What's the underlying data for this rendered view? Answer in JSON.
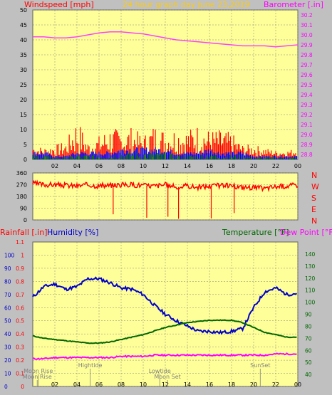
{
  "header": {
    "windspeed_label": "Windspeed [mph]",
    "title": "24 hour graph day  June 23,2019",
    "barometer_label": "Barometer [.in]"
  },
  "colors": {
    "panel": "#ffff99",
    "background": "#c0c0c0",
    "grid": "#808080",
    "wind": "#ff0000",
    "gust_low": "#0000ff",
    "gust_green": "#008000",
    "barometer": "#ff40ff",
    "humidity": "#0000cc",
    "temperature": "#006600",
    "dewpoint": "#ff00ff",
    "title_orange": "#ffcc00"
  },
  "chart_data": [
    {
      "type": "line",
      "name": "wind-barometer",
      "x_ticks": [
        "02",
        "04",
        "06",
        "08",
        "10",
        "12",
        "14",
        "16",
        "18",
        "20",
        "22",
        "00"
      ],
      "y_left_ticks": [
        0,
        5,
        10,
        15,
        20,
        25,
        30,
        35,
        40,
        45,
        50
      ],
      "y_left_lim": [
        0,
        50
      ],
      "y_right_ticks": [
        28.8,
        28.9,
        29.0,
        29.1,
        29.2,
        29.3,
        29.4,
        29.5,
        29.6,
        29.7,
        29.8,
        29.9,
        30.0,
        30.1,
        30.2
      ],
      "y_right_lim": [
        28.75,
        30.25
      ],
      "barometer": {
        "x": [
          0,
          1,
          2,
          3,
          4,
          5,
          6,
          7,
          8,
          9,
          10,
          11,
          12,
          13,
          14,
          15,
          16,
          17,
          18,
          19,
          20,
          21,
          22,
          23,
          24
        ],
        "y": [
          29.98,
          29.98,
          29.97,
          29.97,
          29.98,
          30.0,
          30.02,
          30.03,
          30.03,
          30.02,
          30.01,
          29.99,
          29.97,
          29.95,
          29.94,
          29.93,
          29.92,
          29.91,
          29.9,
          29.89,
          29.89,
          29.89,
          29.88,
          29.89,
          29.9
        ]
      },
      "wind_avg_mph": {
        "x": [
          0,
          1,
          2,
          3,
          4,
          5,
          6,
          7,
          8,
          9,
          10,
          11,
          12,
          13,
          14,
          15,
          16,
          17,
          18,
          19,
          20,
          21,
          22,
          23,
          24
        ],
        "y": [
          2,
          2,
          1,
          1,
          2,
          2,
          2,
          2,
          3,
          3,
          3,
          3,
          3,
          2,
          2,
          2,
          3,
          2,
          2,
          2,
          1,
          1,
          1,
          1,
          1
        ]
      },
      "wind_gust_peak_mph": {
        "x": [
          0,
          1,
          2,
          3,
          4,
          5,
          6,
          7,
          8,
          9,
          10,
          11,
          12,
          13,
          14,
          15,
          16,
          17,
          18,
          19,
          20,
          21,
          22,
          23,
          24
        ],
        "y": [
          5,
          4,
          5,
          6,
          14,
          6,
          8,
          11,
          10,
          11,
          8,
          12,
          10,
          11,
          10,
          12,
          10,
          10,
          9,
          5,
          5,
          4,
          3,
          3,
          4
        ]
      }
    },
    {
      "type": "line",
      "name": "wind-direction",
      "y_left_ticks": [
        0,
        90,
        180,
        270,
        360
      ],
      "y_left_lim": [
        0,
        360
      ],
      "compass": [
        "N",
        "W",
        "S",
        "E",
        "N"
      ],
      "direction_deg": {
        "x": [
          0,
          1,
          2,
          3,
          4,
          5,
          6,
          7,
          8,
          9,
          10,
          11,
          12,
          13,
          14,
          15,
          16,
          17,
          18,
          19,
          20,
          21,
          22,
          23,
          24
        ],
        "y": [
          280,
          270,
          270,
          265,
          260,
          270,
          260,
          265,
          270,
          270,
          265,
          260,
          270,
          250,
          260,
          250,
          260,
          265,
          260,
          250,
          250,
          240,
          255,
          260,
          270
        ]
      }
    },
    {
      "type": "line",
      "name": "temperature-humidity",
      "header": {
        "rain_label": "Rainfall [.in]",
        "humidity_label": "Humidity [%]",
        "temp_label": "Temperature [°F]",
        "dew_label": "Dew Point [°F]"
      },
      "x_ticks": [
        "02",
        "04",
        "06",
        "08",
        "10",
        "12",
        "14",
        "16",
        "18",
        "20",
        "22",
        "00"
      ],
      "humidity_ticks": [
        0,
        10,
        20,
        30,
        40,
        50,
        60,
        70,
        80,
        90,
        100
      ],
      "rain_ticks": [
        "0",
        "0.1",
        "0.2",
        "0.3",
        "0.4",
        "0.5",
        "0.6",
        "0.7",
        "0.8",
        "0.9",
        "1",
        "1.1"
      ],
      "temp_ticks": [
        40,
        50,
        60,
        70,
        80,
        90,
        100,
        110,
        120,
        130,
        140
      ],
      "temp_lim": [
        30,
        150
      ],
      "humidity_lim": [
        0,
        110
      ],
      "humidity": {
        "x": [
          0,
          1,
          2,
          3,
          4,
          5,
          6,
          7,
          8,
          9,
          10,
          11,
          12,
          13,
          14,
          15,
          16,
          17,
          18,
          19,
          20,
          21,
          22,
          23,
          24
        ],
        "y": [
          68,
          76,
          78,
          74,
          76,
          82,
          82,
          79,
          75,
          74,
          70,
          62,
          55,
          50,
          46,
          42,
          42,
          41,
          42,
          44,
          60,
          72,
          75,
          70,
          71
        ]
      },
      "temperature": {
        "x": [
          0,
          1,
          2,
          3,
          4,
          5,
          6,
          7,
          8,
          9,
          10,
          11,
          12,
          13,
          14,
          15,
          16,
          17,
          18,
          19,
          20,
          21,
          22,
          23,
          24
        ],
        "y": [
          72,
          70,
          69,
          68,
          67,
          66,
          66,
          67,
          69,
          71,
          73,
          76,
          79,
          81,
          83,
          84,
          85,
          85,
          85,
          83,
          79,
          75,
          73,
          71,
          71
        ]
      },
      "dewpoint": {
        "x": [
          0,
          1,
          2,
          3,
          4,
          5,
          6,
          7,
          8,
          9,
          10,
          11,
          12,
          13,
          14,
          15,
          16,
          17,
          18,
          19,
          20,
          21,
          22,
          23,
          24
        ],
        "y": [
          53,
          53,
          54,
          54,
          54,
          54,
          54,
          54,
          55,
          55,
          55,
          56,
          56,
          56,
          56,
          56,
          56,
          56,
          56,
          56,
          56,
          56,
          57,
          57,
          57
        ]
      },
      "annotations": [
        {
          "label": "Moon Rise",
          "hour": 0.5,
          "row": 2
        },
        {
          "label": "Moon Rise",
          "hour": 0.4,
          "row": 3
        },
        {
          "label": "Hightide",
          "hour": 5.2,
          "row": 1
        },
        {
          "label": "Lowtide",
          "hour": 11.5,
          "row": 2
        },
        {
          "label": "Moon Set",
          "hour": 12.2,
          "row": 3
        },
        {
          "label": "SunSet",
          "hour": 20.6,
          "row": 1
        }
      ]
    }
  ]
}
